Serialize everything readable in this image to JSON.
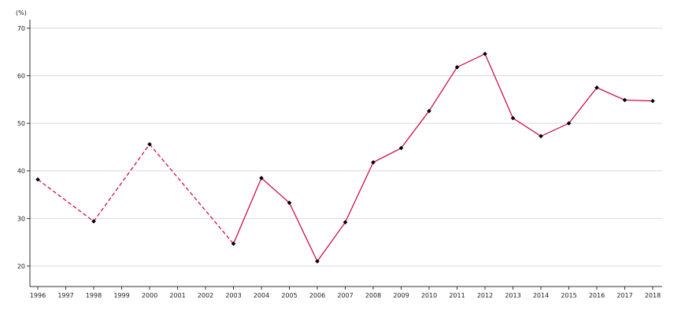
{
  "chart_data": {
    "type": "line",
    "title": "",
    "unit_label": "(%)",
    "xlabel": "",
    "ylabel": "",
    "x": [
      "1996",
      "1997",
      "1998",
      "1999",
      "2000",
      "2001",
      "2002",
      "2003",
      "2004",
      "2005",
      "2006",
      "2007",
      "2008",
      "2009",
      "2010",
      "2011",
      "2012",
      "2013",
      "2014",
      "2015",
      "2016",
      "2017",
      "2018"
    ],
    "data_points": [
      {
        "x": "1996",
        "y": 38.2
      },
      {
        "x": "1998",
        "y": 29.4
      },
      {
        "x": "2000",
        "y": 45.6
      },
      {
        "x": "2003",
        "y": 24.7
      },
      {
        "x": "2004",
        "y": 38.5
      },
      {
        "x": "2005",
        "y": 33.3
      },
      {
        "x": "2006",
        "y": 21.0
      },
      {
        "x": "2007",
        "y": 29.2
      },
      {
        "x": "2008",
        "y": 41.8
      },
      {
        "x": "2009",
        "y": 44.8
      },
      {
        "x": "2010",
        "y": 52.6
      },
      {
        "x": "2011",
        "y": 61.8
      },
      {
        "x": "2012",
        "y": 64.6
      },
      {
        "x": "2013",
        "y": 51.1
      },
      {
        "x": "2014",
        "y": 47.3
      },
      {
        "x": "2015",
        "y": 50.0
      },
      {
        "x": "2016",
        "y": 57.5
      },
      {
        "x": "2017",
        "y": 54.9
      },
      {
        "x": "2018",
        "y": 54.7
      }
    ],
    "dashed_until": "2003",
    "ylim": [
      15.7,
      71.8
    ],
    "yticks": [
      20,
      30,
      40,
      50,
      60,
      70
    ],
    "grid": "horizontal",
    "legend": "none",
    "colors": {
      "line": "#cc0033",
      "marker": "#000000",
      "grid": "#d9d9d9",
      "axis": "#333333"
    }
  }
}
